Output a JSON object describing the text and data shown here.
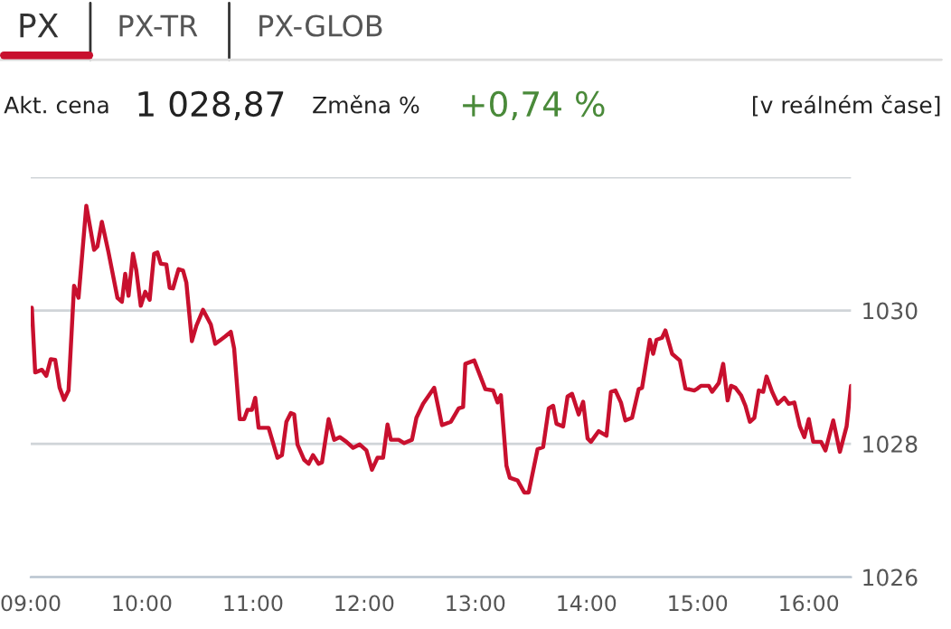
{
  "chart_data": {
    "type": "line",
    "annotations": [
      "PX",
      "PX-TR",
      "PX-GLOB",
      "Akt. cena",
      "1 028,87",
      "Změna %",
      "+0,74 %",
      "[v reálném čase]"
    ],
    "x": [
      9.01,
      9.04,
      9.1,
      9.14,
      9.18,
      9.22,
      9.26,
      9.3,
      9.34,
      9.39,
      9.43,
      9.5,
      9.57,
      9.6,
      9.64,
      9.7,
      9.78,
      9.82,
      9.85,
      9.88,
      9.92,
      9.95,
      9.99,
      10.03,
      10.07,
      10.11,
      10.14,
      10.17,
      10.22,
      10.25,
      10.28,
      10.33,
      10.37,
      10.4,
      10.45,
      10.49,
      10.55,
      10.62,
      10.66,
      10.71,
      10.75,
      10.8,
      10.83,
      10.88,
      10.92,
      10.95,
      10.99,
      11.02,
      11.05,
      11.14,
      11.22,
      11.26,
      11.3,
      11.34,
      11.37,
      11.4,
      11.46,
      11.5,
      11.54,
      11.59,
      11.62,
      11.68,
      11.73,
      11.78,
      11.84,
      11.9,
      11.96,
      12.02,
      12.07,
      12.12,
      12.17,
      12.21,
      12.24,
      12.31,
      12.36,
      12.43,
      12.47,
      12.53,
      12.63,
      12.7,
      12.78,
      12.85,
      12.89,
      12.91,
      12.99,
      13.09,
      13.16,
      13.2,
      13.23,
      13.28,
      13.31,
      13.38,
      13.44,
      13.48,
      13.56,
      13.61,
      13.66,
      13.7,
      13.73,
      13.79,
      13.83,
      13.87,
      13.93,
      13.97,
      14.01,
      14.04,
      14.11,
      14.18,
      14.22,
      14.26,
      14.31,
      14.35,
      14.41,
      14.47,
      14.5,
      14.57,
      14.6,
      14.63,
      14.68,
      14.71,
      14.77,
      14.84,
      14.89,
      14.97,
      15.0,
      15.03,
      15.1,
      15.13,
      15.19,
      15.23,
      15.27,
      15.3,
      15.34,
      15.39,
      15.43,
      15.47,
      15.51,
      15.55,
      15.59,
      15.62,
      15.67,
      15.72,
      15.78,
      15.82,
      15.87,
      15.92,
      15.96,
      16.0,
      16.04,
      16.11,
      16.15,
      16.22,
      16.28,
      16.34,
      16.38
    ],
    "series": [
      {
        "color": "#c8102e",
        "values": [
          1030.04,
          1029.07,
          1029.11,
          1029.02,
          1029.27,
          1029.26,
          1028.84,
          1028.66,
          1028.8,
          1030.37,
          1030.19,
          1031.57,
          1030.91,
          1030.96,
          1031.33,
          1030.87,
          1030.19,
          1030.13,
          1030.55,
          1030.22,
          1030.85,
          1030.6,
          1030.07,
          1030.28,
          1030.16,
          1030.85,
          1030.87,
          1030.7,
          1030.69,
          1030.34,
          1030.33,
          1030.62,
          1030.6,
          1030.42,
          1029.54,
          1029.77,
          1030.01,
          1029.79,
          1029.5,
          1029.56,
          1029.61,
          1029.68,
          1029.43,
          1028.37,
          1028.37,
          1028.51,
          1028.51,
          1028.69,
          1028.24,
          1028.24,
          1027.79,
          1027.83,
          1028.33,
          1028.46,
          1028.44,
          1027.99,
          1027.76,
          1027.7,
          1027.83,
          1027.7,
          1027.72,
          1028.37,
          1028.06,
          1028.1,
          1028.03,
          1027.94,
          1027.99,
          1027.9,
          1027.61,
          1027.79,
          1027.79,
          1028.29,
          1028.06,
          1028.06,
          1028.01,
          1028.06,
          1028.39,
          1028.6,
          1028.84,
          1028.28,
          1028.33,
          1028.53,
          1028.55,
          1029.2,
          1029.25,
          1028.82,
          1028.8,
          1028.62,
          1028.73,
          1027.67,
          1027.49,
          1027.45,
          1027.27,
          1027.27,
          1027.92,
          1027.95,
          1028.53,
          1028.57,
          1028.3,
          1028.26,
          1028.71,
          1028.75,
          1028.44,
          1028.63,
          1028.08,
          1028.03,
          1028.19,
          1028.12,
          1028.78,
          1028.8,
          1028.62,
          1028.35,
          1028.39,
          1028.82,
          1028.84,
          1029.56,
          1029.35,
          1029.56,
          1029.59,
          1029.7,
          1029.35,
          1029.25,
          1028.83,
          1028.8,
          1028.83,
          1028.87,
          1028.87,
          1028.78,
          1028.91,
          1029.2,
          1028.65,
          1028.87,
          1028.84,
          1028.73,
          1028.57,
          1028.33,
          1028.39,
          1028.8,
          1028.78,
          1029.01,
          1028.78,
          1028.6,
          1028.69,
          1028.6,
          1028.62,
          1028.26,
          1028.1,
          1028.37,
          1028.03,
          1028.03,
          1027.9,
          1028.35,
          1027.88,
          1028.26,
          1028.87
        ]
      }
    ],
    "xlim": [
      9.0,
      16.38
    ],
    "xticks": [
      {
        "value": 9,
        "label": "09:00"
      },
      {
        "value": 10,
        "label": "10:00"
      },
      {
        "value": 11,
        "label": "11:00"
      },
      {
        "value": 12,
        "label": "12:00"
      },
      {
        "value": 13,
        "label": "13:00"
      },
      {
        "value": 14,
        "label": "14:00"
      },
      {
        "value": 15,
        "label": "15:00"
      },
      {
        "value": 16,
        "label": "16:00"
      }
    ],
    "ylim": [
      1026,
      1032
    ],
    "yticks": [
      1026,
      1028,
      1030,
      {
        "value": 1032,
        "label": null
      }
    ],
    "grid": "y",
    "marker": "none",
    "line_style": "solid"
  }
}
